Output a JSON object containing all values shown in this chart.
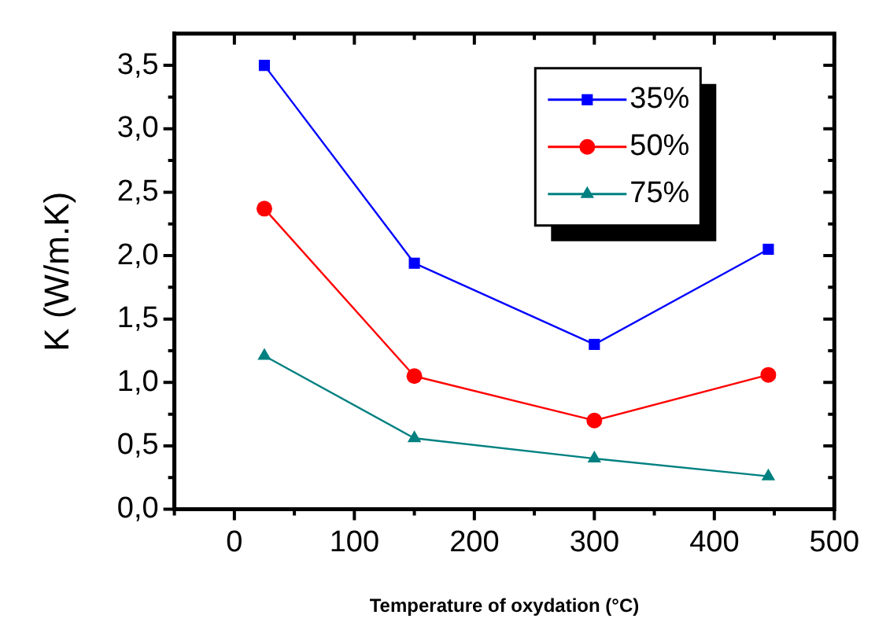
{
  "chart_data": {
    "type": "line",
    "xlabel": "Temperature of oxydation (°C)",
    "ylabel": "K (W/m.K)",
    "x": [
      25,
      150,
      300,
      445
    ],
    "series": [
      {
        "name": "35%",
        "color": "#0000ff",
        "marker": "square",
        "values": [
          3.5,
          1.94,
          1.3,
          2.05
        ]
      },
      {
        "name": "50%",
        "color": "#ff0000",
        "marker": "circle",
        "values": [
          2.37,
          1.05,
          0.7,
          1.06
        ]
      },
      {
        "name": "75%",
        "color": "#008080",
        "marker": "triangle",
        "values": [
          1.21,
          0.56,
          0.4,
          0.26
        ]
      }
    ],
    "xlim": [
      -50,
      500
    ],
    "xticks": [
      {
        "value": -50,
        "label": null
      },
      0,
      {
        "value": 50,
        "label": null
      },
      100,
      {
        "value": 150,
        "label": null
      },
      200,
      {
        "value": 250,
        "label": null
      },
      300,
      {
        "value": 350,
        "label": null
      },
      400,
      {
        "value": 450,
        "label": null
      },
      500
    ],
    "ylim": [
      0,
      3.75
    ],
    "yticks": [
      {
        "value": 0,
        "label": "0,0"
      },
      {
        "value": 0.25,
        "label": null
      },
      {
        "value": 0.5,
        "label": "0,5"
      },
      {
        "value": 0.75,
        "label": null
      },
      {
        "value": 1,
        "label": "1,0"
      },
      {
        "value": 1.25,
        "label": null
      },
      {
        "value": 1.5,
        "label": "1,5"
      },
      {
        "value": 1.75,
        "label": null
      },
      {
        "value": 2,
        "label": "2,0"
      },
      {
        "value": 2.25,
        "label": null
      },
      {
        "value": 2.5,
        "label": "2,5"
      },
      {
        "value": 2.75,
        "label": null
      },
      {
        "value": 3,
        "label": "3,0"
      },
      {
        "value": 3.25,
        "label": null
      },
      {
        "value": 3.5,
        "label": "3,5"
      }
    ],
    "grid": false,
    "legend": "top right",
    "line_style": "solid"
  }
}
